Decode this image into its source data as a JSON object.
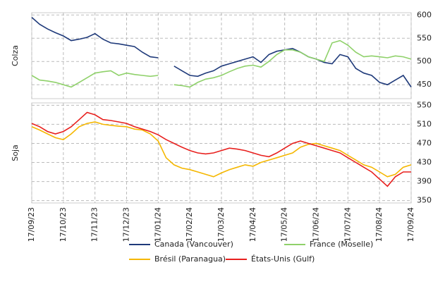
{
  "chart_data": {
    "type": "line",
    "categories": [
      "17/09/23",
      null,
      null,
      null,
      "17/10/23",
      null,
      null,
      null,
      "17/11/23",
      null,
      null,
      null,
      "17/12/23",
      null,
      null,
      null,
      "17/01/24",
      null,
      null,
      null,
      "17/02/24",
      null,
      null,
      null,
      "17/03/24",
      null,
      null,
      null,
      "17/04/24",
      null,
      null,
      null,
      "17/05/24",
      null,
      null,
      null,
      "17/06/24",
      null,
      null,
      null,
      "17/07/24",
      null,
      null,
      null,
      "17/08/24",
      null,
      null,
      null,
      "17/09/24"
    ],
    "grid": true,
    "panels": [
      {
        "ylabel": "Colza",
        "ylim": [
          420,
          605
        ],
        "yticks": [
          450,
          500,
          550,
          600
        ],
        "series": [
          {
            "name": "Canada (Vancouver)",
            "color": "#1f3a7a",
            "values": [
              595,
              580,
              570,
              562,
              555,
              545,
              548,
              552,
              560,
              548,
              540,
              538,
              535,
              532,
              520,
              510,
              508,
              null,
              490,
              480,
              470,
              468,
              475,
              480,
              490,
              495,
              500,
              505,
              510,
              498,
              515,
              522,
              525,
              528,
              520,
              510,
              505,
              498,
              495,
              515,
              510,
              485,
              475,
              470,
              455,
              450,
              460,
              470,
              445
            ]
          },
          {
            "name": "France (Moselle)",
            "color": "#8fd16a",
            "values": [
              470,
              460,
              458,
              455,
              450,
              445,
              455,
              465,
              475,
              478,
              480,
              470,
              475,
              472,
              470,
              468,
              470,
              null,
              450,
              448,
              445,
              455,
              462,
              465,
              470,
              478,
              485,
              490,
              492,
              488,
              500,
              515,
              525,
              525,
              520,
              510,
              505,
              500,
              540,
              545,
              535,
              520,
              510,
              512,
              510,
              508,
              512,
              510,
              505
            ]
          }
        ]
      },
      {
        "ylabel": "Soja",
        "ylim": [
          345,
          555
        ],
        "yticks": [
          350,
          390,
          430,
          470,
          510,
          550
        ],
        "series": [
          {
            "name": "Brésil (Paranagua)",
            "color": "#f5b700",
            "values": [
              505,
              498,
              490,
              482,
              478,
              490,
              505,
              512,
              515,
              510,
              508,
              506,
              505,
              500,
              498,
              490,
              475,
              440,
              425,
              418,
              415,
              410,
              405,
              400,
              408,
              415,
              420,
              425,
              422,
              430,
              435,
              440,
              445,
              450,
              462,
              468,
              470,
              465,
              460,
              455,
              445,
              435,
              425,
              420,
              410,
              400,
              405,
              420,
              425
            ]
          },
          {
            "name": "États-Unis (Gulf)",
            "color": "#e8201e",
            "values": [
              512,
              505,
              495,
              490,
              495,
              505,
              520,
              535,
              530,
              520,
              518,
              515,
              512,
              505,
              500,
              495,
              488,
              478,
              470,
              462,
              455,
              450,
              448,
              450,
              455,
              460,
              458,
              455,
              450,
              445,
              442,
              450,
              460,
              470,
              475,
              470,
              465,
              460,
              455,
              450,
              440,
              430,
              420,
              410,
              395,
              380,
              400,
              410,
              410
            ]
          }
        ]
      }
    ]
  }
}
